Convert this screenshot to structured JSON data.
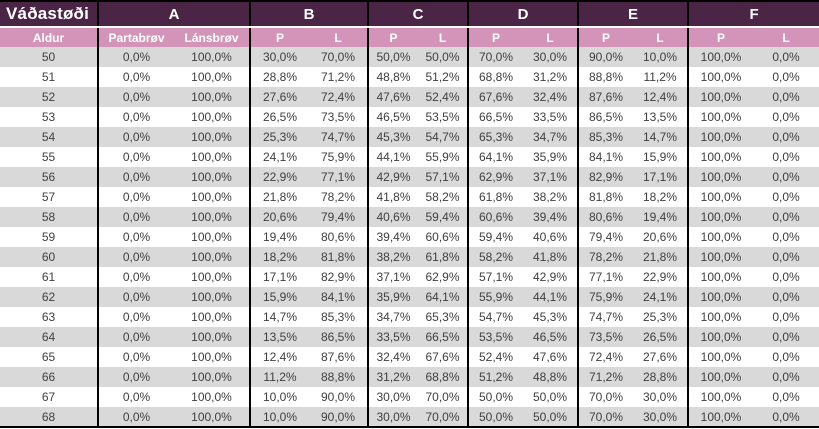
{
  "colors": {
    "header_bg": "#4b2545",
    "subheader_bg": "#d494ba",
    "stripe_gray": "#d9d9d9",
    "stripe_white": "#ffffff",
    "text_dark": "#3f3f3f",
    "border_black": "#000000"
  },
  "chart_data": {
    "type": "table",
    "title": "Váðastøði",
    "age_header": "Aldur",
    "groups": [
      {
        "label": "A",
        "subcols": [
          "Partabrøv",
          "Lánsbrøv"
        ]
      },
      {
        "label": "B",
        "subcols": [
          "P",
          "L"
        ]
      },
      {
        "label": "C",
        "subcols": [
          "P",
          "L"
        ]
      },
      {
        "label": "D",
        "subcols": [
          "P",
          "L"
        ]
      },
      {
        "label": "E",
        "subcols": [
          "P",
          "L"
        ]
      },
      {
        "label": "F",
        "subcols": [
          "P",
          "L"
        ]
      }
    ],
    "rows": [
      {
        "age": "50",
        "values": [
          "0,0%",
          "100,0%",
          "30,0%",
          "70,0%",
          "50,0%",
          "50,0%",
          "70,0%",
          "30,0%",
          "90,0%",
          "10,0%",
          "100,0%",
          "0,0%"
        ]
      },
      {
        "age": "51",
        "values": [
          "0,0%",
          "100,0%",
          "28,8%",
          "71,2%",
          "48,8%",
          "51,2%",
          "68,8%",
          "31,2%",
          "88,8%",
          "11,2%",
          "100,0%",
          "0,0%"
        ]
      },
      {
        "age": "52",
        "values": [
          "0,0%",
          "100,0%",
          "27,6%",
          "72,4%",
          "47,6%",
          "52,4%",
          "67,6%",
          "32,4%",
          "87,6%",
          "12,4%",
          "100,0%",
          "0,0%"
        ]
      },
      {
        "age": "53",
        "values": [
          "0,0%",
          "100,0%",
          "26,5%",
          "73,5%",
          "46,5%",
          "53,5%",
          "66,5%",
          "33,5%",
          "86,5%",
          "13,5%",
          "100,0%",
          "0,0%"
        ]
      },
      {
        "age": "54",
        "values": [
          "0,0%",
          "100,0%",
          "25,3%",
          "74,7%",
          "45,3%",
          "54,7%",
          "65,3%",
          "34,7%",
          "85,3%",
          "14,7%",
          "100,0%",
          "0,0%"
        ]
      },
      {
        "age": "55",
        "values": [
          "0,0%",
          "100,0%",
          "24,1%",
          "75,9%",
          "44,1%",
          "55,9%",
          "64,1%",
          "35,9%",
          "84,1%",
          "15,9%",
          "100,0%",
          "0,0%"
        ]
      },
      {
        "age": "56",
        "values": [
          "0,0%",
          "100,0%",
          "22,9%",
          "77,1%",
          "42,9%",
          "57,1%",
          "62,9%",
          "37,1%",
          "82,9%",
          "17,1%",
          "100,0%",
          "0,0%"
        ]
      },
      {
        "age": "57",
        "values": [
          "0,0%",
          "100,0%",
          "21,8%",
          "78,2%",
          "41,8%",
          "58,2%",
          "61,8%",
          "38,2%",
          "81,8%",
          "18,2%",
          "100,0%",
          "0,0%"
        ]
      },
      {
        "age": "58",
        "values": [
          "0,0%",
          "100,0%",
          "20,6%",
          "79,4%",
          "40,6%",
          "59,4%",
          "60,6%",
          "39,4%",
          "80,6%",
          "19,4%",
          "100,0%",
          "0,0%"
        ]
      },
      {
        "age": "59",
        "values": [
          "0,0%",
          "100,0%",
          "19,4%",
          "80,6%",
          "39,4%",
          "60,6%",
          "59,4%",
          "40,6%",
          "79,4%",
          "20,6%",
          "100,0%",
          "0,0%"
        ]
      },
      {
        "age": "60",
        "values": [
          "0,0%",
          "100,0%",
          "18,2%",
          "81,8%",
          "38,2%",
          "61,8%",
          "58,2%",
          "41,8%",
          "78,2%",
          "21,8%",
          "100,0%",
          "0,0%"
        ]
      },
      {
        "age": "61",
        "values": [
          "0,0%",
          "100,0%",
          "17,1%",
          "82,9%",
          "37,1%",
          "62,9%",
          "57,1%",
          "42,9%",
          "77,1%",
          "22,9%",
          "100,0%",
          "0,0%"
        ]
      },
      {
        "age": "62",
        "values": [
          "0,0%",
          "100,0%",
          "15,9%",
          "84,1%",
          "35,9%",
          "64,1%",
          "55,9%",
          "44,1%",
          "75,9%",
          "24,1%",
          "100,0%",
          "0,0%"
        ]
      },
      {
        "age": "63",
        "values": [
          "0,0%",
          "100,0%",
          "14,7%",
          "85,3%",
          "34,7%",
          "65,3%",
          "54,7%",
          "45,3%",
          "74,7%",
          "25,3%",
          "100,0%",
          "0,0%"
        ]
      },
      {
        "age": "64",
        "values": [
          "0,0%",
          "100,0%",
          "13,5%",
          "86,5%",
          "33,5%",
          "66,5%",
          "53,5%",
          "46,5%",
          "73,5%",
          "26,5%",
          "100,0%",
          "0,0%"
        ]
      },
      {
        "age": "65",
        "values": [
          "0,0%",
          "100,0%",
          "12,4%",
          "87,6%",
          "32,4%",
          "67,6%",
          "52,4%",
          "47,6%",
          "72,4%",
          "27,6%",
          "100,0%",
          "0,0%"
        ]
      },
      {
        "age": "66",
        "values": [
          "0,0%",
          "100,0%",
          "11,2%",
          "88,8%",
          "31,2%",
          "68,8%",
          "51,2%",
          "48,8%",
          "71,2%",
          "28,8%",
          "100,0%",
          "0,0%"
        ]
      },
      {
        "age": "67",
        "values": [
          "0,0%",
          "100,0%",
          "10,0%",
          "90,0%",
          "30,0%",
          "70,0%",
          "50,0%",
          "50,0%",
          "70,0%",
          "30,0%",
          "100,0%",
          "0,0%"
        ]
      },
      {
        "age": "68",
        "values": [
          "0,0%",
          "100,0%",
          "10,0%",
          "90,0%",
          "30,0%",
          "70,0%",
          "50,0%",
          "50,0%",
          "70,0%",
          "30,0%",
          "100,0%",
          "0,0%"
        ]
      }
    ]
  }
}
